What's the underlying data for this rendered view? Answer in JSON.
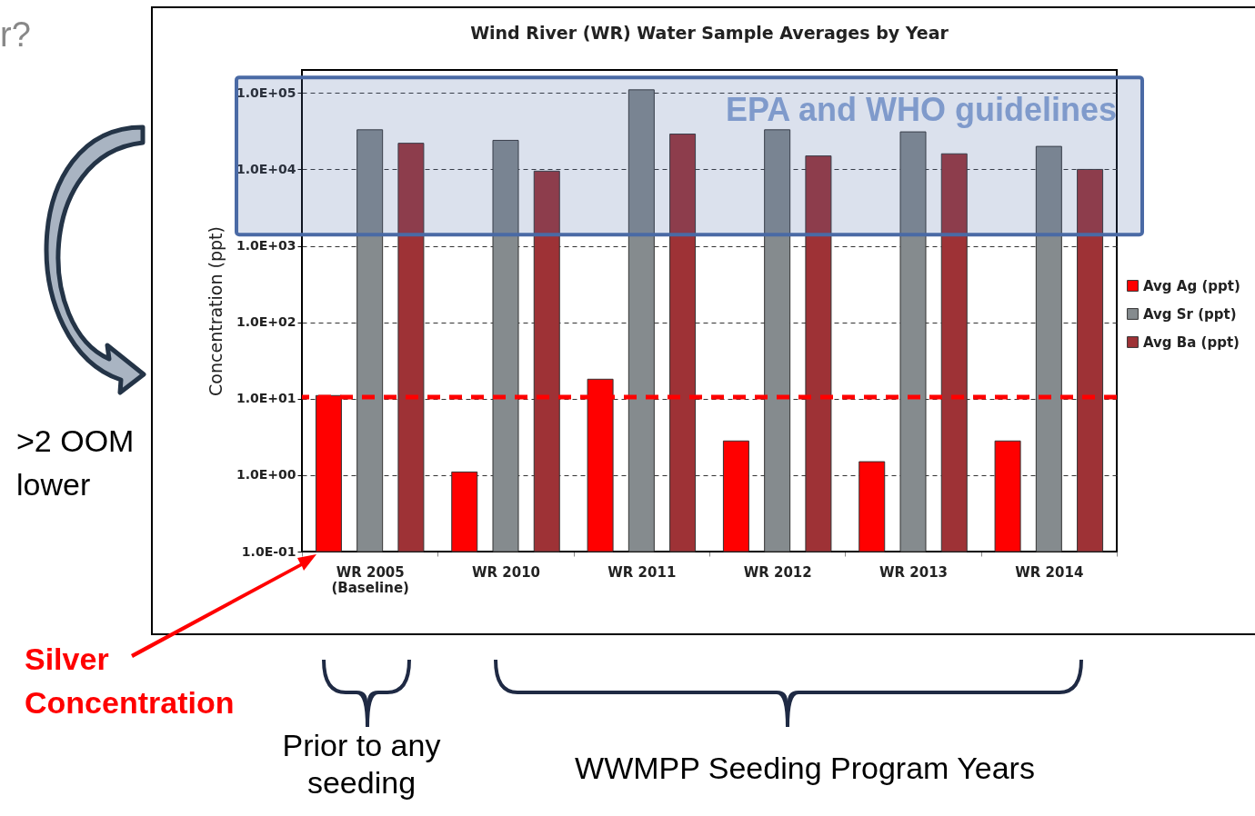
{
  "chart_data": {
    "type": "bar",
    "title": "Wind River (WR) Water Sample Averages by Year",
    "ylabel": "Concentration (ppt)",
    "categories": [
      "WR 2005 (Baseline)",
      "WR 2010",
      "WR 2011",
      "WR 2012",
      "WR 2013",
      "WR 2014"
    ],
    "series": [
      {
        "name": "Avg Ag (ppt)",
        "color": "#ff0000",
        "values": [
          11,
          1.1,
          18,
          2.8,
          1.5,
          2.8
        ]
      },
      {
        "name": "Avg Sr (ppt)",
        "color": "#858b8e",
        "values": [
          33000,
          24000,
          110000,
          33000,
          31000,
          20000
        ]
      },
      {
        "name": "Avg Ba (ppt)",
        "color": "#9e3236",
        "values": [
          22000,
          9500,
          29000,
          15000,
          16000,
          10000
        ]
      }
    ],
    "log": "y",
    "ylim": [
      0.1,
      200000
    ],
    "yticks": [
      {
        "value": 0.1,
        "label": "1.0E-01"
      },
      {
        "value": 1,
        "label": "1.0E+00"
      },
      {
        "value": 10,
        "label": "1.0E+01"
      },
      {
        "value": 100,
        "label": "1.0E+02"
      },
      {
        "value": 1000,
        "label": "1.0E+03"
      },
      {
        "value": 10000,
        "label": "1.0E+04"
      },
      {
        "value": 100000,
        "label": "1.0E+05"
      }
    ],
    "grid": "y",
    "legend": "right",
    "ref_lines": [
      {
        "axis": "y",
        "value": 10.5,
        "color": "#ff0000",
        "line_style": "dashed"
      }
    ],
    "bands": [
      {
        "axis": "y",
        "from": 1400,
        "to": 160000,
        "label": "EPA and WHO guidelines",
        "color": "#4a6aa5"
      }
    ],
    "annotations": [
      "r?",
      ">2 OOM lower",
      "Silver Concentration",
      "Prior to any seeding",
      "WWMPP Seeding Program Years"
    ]
  }
}
